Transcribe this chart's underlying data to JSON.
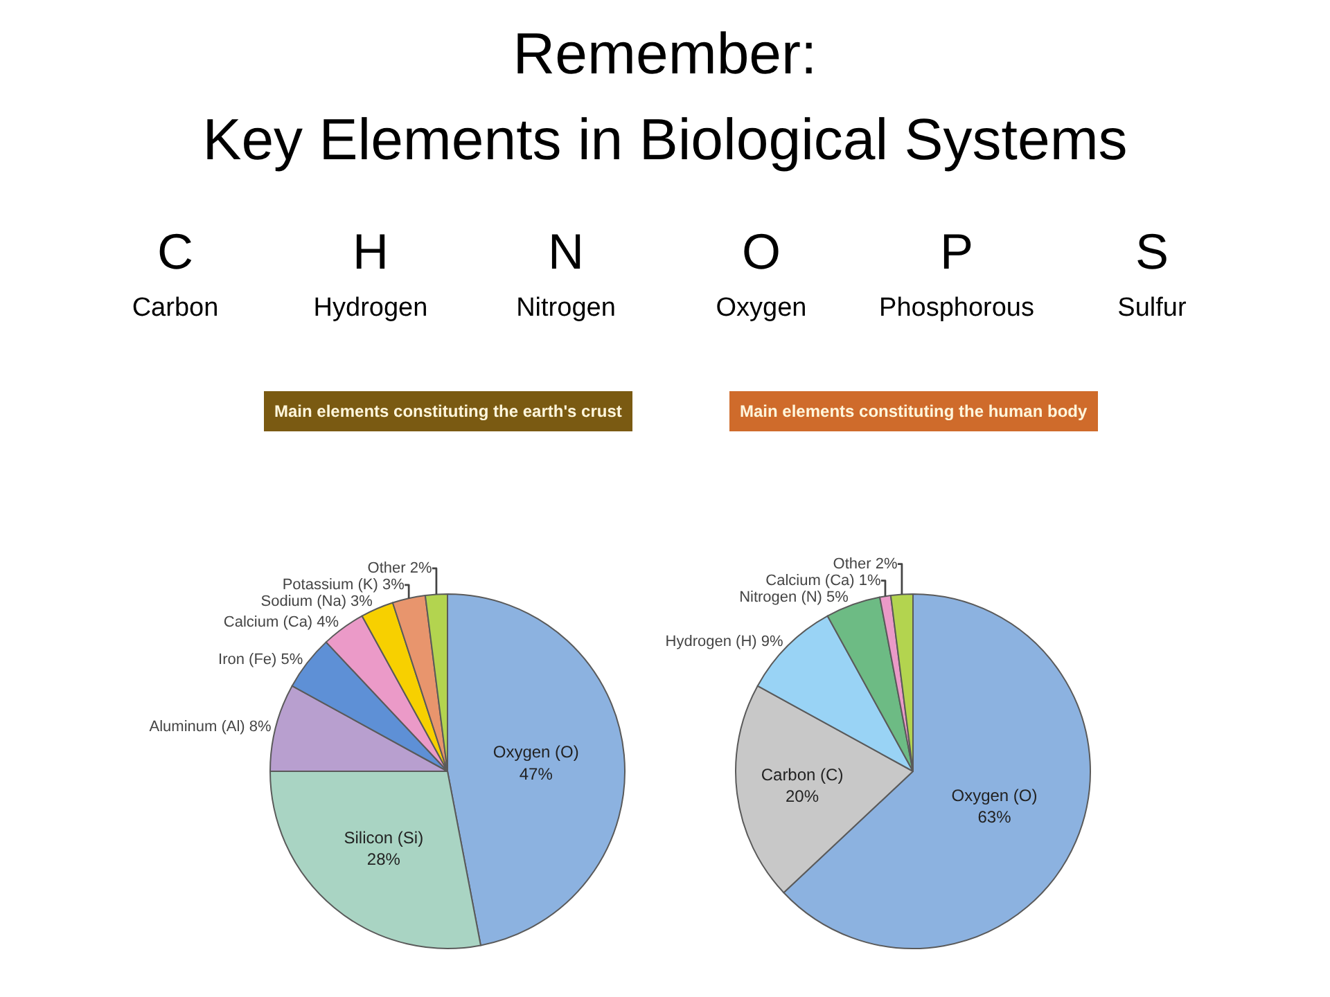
{
  "chart_data": [
    {
      "type": "other",
      "title": "Remember:\nKey Elements in Biological Systems",
      "annotations": [
        "C",
        "Carbon",
        "H",
        "Hydrogen",
        "N",
        "Nitrogen",
        "O",
        "Oxygen",
        "P",
        "Phosphorous",
        "S",
        "Sulfur"
      ]
    },
    {
      "type": "pie",
      "title": "Main elements constituting the earth's crust",
      "categories": [
        "Oxygen (O)",
        "Silicon (Si)",
        "Aluminum (Al)",
        "Iron (Fe)",
        "Calcium (Ca)",
        "Sodium (Na)",
        "Potassium (K)",
        "Other"
      ],
      "values": [
        47,
        28,
        8,
        5,
        4,
        3,
        3,
        2
      ],
      "value_labels": [
        "47%",
        "28%",
        "8%",
        "5%",
        "4%",
        "3%",
        "3%",
        "2%"
      ],
      "colors": [
        "#8cb2e0",
        "#a9d4c3",
        "#b89fcf",
        "#5e90d6",
        "#eb9ac8",
        "#f7d000",
        "#e8956d",
        "#b3d44f"
      ]
    },
    {
      "type": "pie",
      "title": "Main elements constituting the human body",
      "categories": [
        "Oxygen (O)",
        "Carbon (C)",
        "Hydrogen (H)",
        "Nitrogen (N)",
        "Calcium (Ca)",
        "Other"
      ],
      "values": [
        63,
        20,
        9,
        5,
        1,
        2
      ],
      "value_labels": [
        "63%",
        "20%",
        "9%",
        "5%",
        "1%",
        "2%"
      ],
      "colors": [
        "#8cb2e0",
        "#c8c8c8",
        "#99d3f5",
        "#6dbb84",
        "#eb9ac8",
        "#b3d44f"
      ]
    }
  ]
}
